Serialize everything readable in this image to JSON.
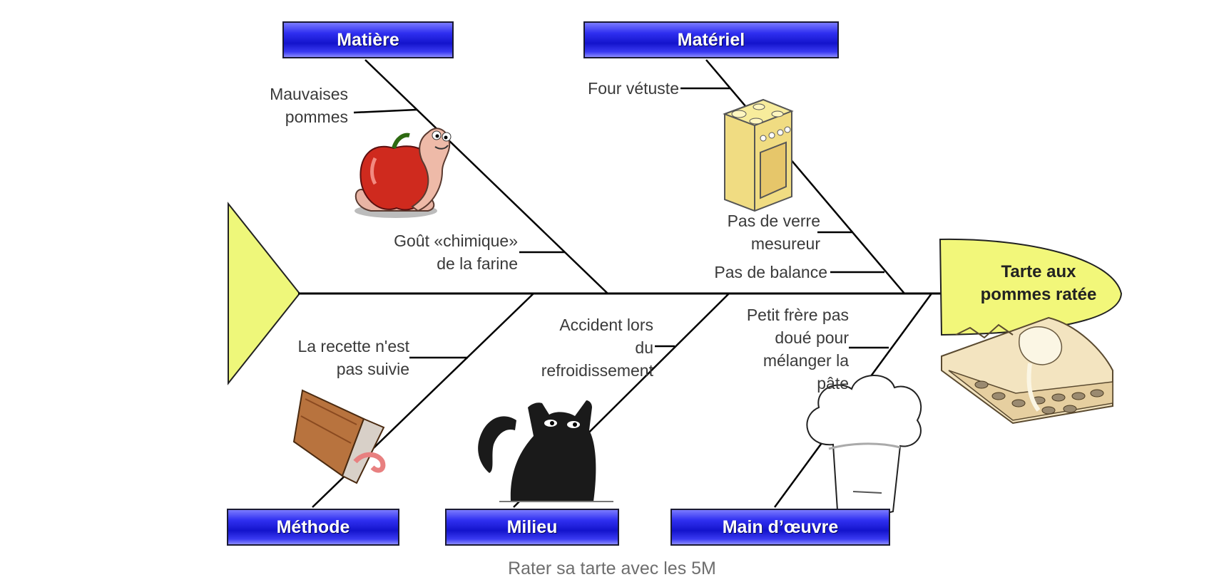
{
  "effect": {
    "line1": "Tarte aux",
    "line2": "pommes ratée"
  },
  "categories": {
    "matiere": "Matière",
    "materiel": "Matériel",
    "methode": "Méthode",
    "milieu": "Milieu",
    "main_oeuvre": "Main d’œuvre"
  },
  "causes": {
    "mauvaises_pommes": [
      "Mauvaises",
      "pommes"
    ],
    "gout_chimique": [
      "Goût «chimique»",
      "de la farine"
    ],
    "four_vetuste": [
      "Four vétuste"
    ],
    "pas_de_verre": [
      "Pas de verre",
      "mesureur"
    ],
    "pas_de_balance": [
      "Pas de balance"
    ],
    "recette": [
      "La recette n'est",
      "pas suivie"
    ],
    "accident": [
      "Accident lors",
      "du",
      "refroidissement"
    ],
    "petit_frere": [
      "Petit frère pas",
      "doué pour",
      "mélanger la",
      "pâte"
    ]
  },
  "caption": "Rater sa tarte avec les 5M",
  "colors": {
    "spine": "#000000",
    "tail": "#eef77a",
    "head": "#f2f77a",
    "category_box": "#1414cc",
    "category_text": "#ffffff"
  },
  "icons": [
    "apple-worm-icon",
    "stove-icon",
    "book-worm-icon",
    "black-cat-icon",
    "chef-hat-icon",
    "apple-pie-icon"
  ]
}
